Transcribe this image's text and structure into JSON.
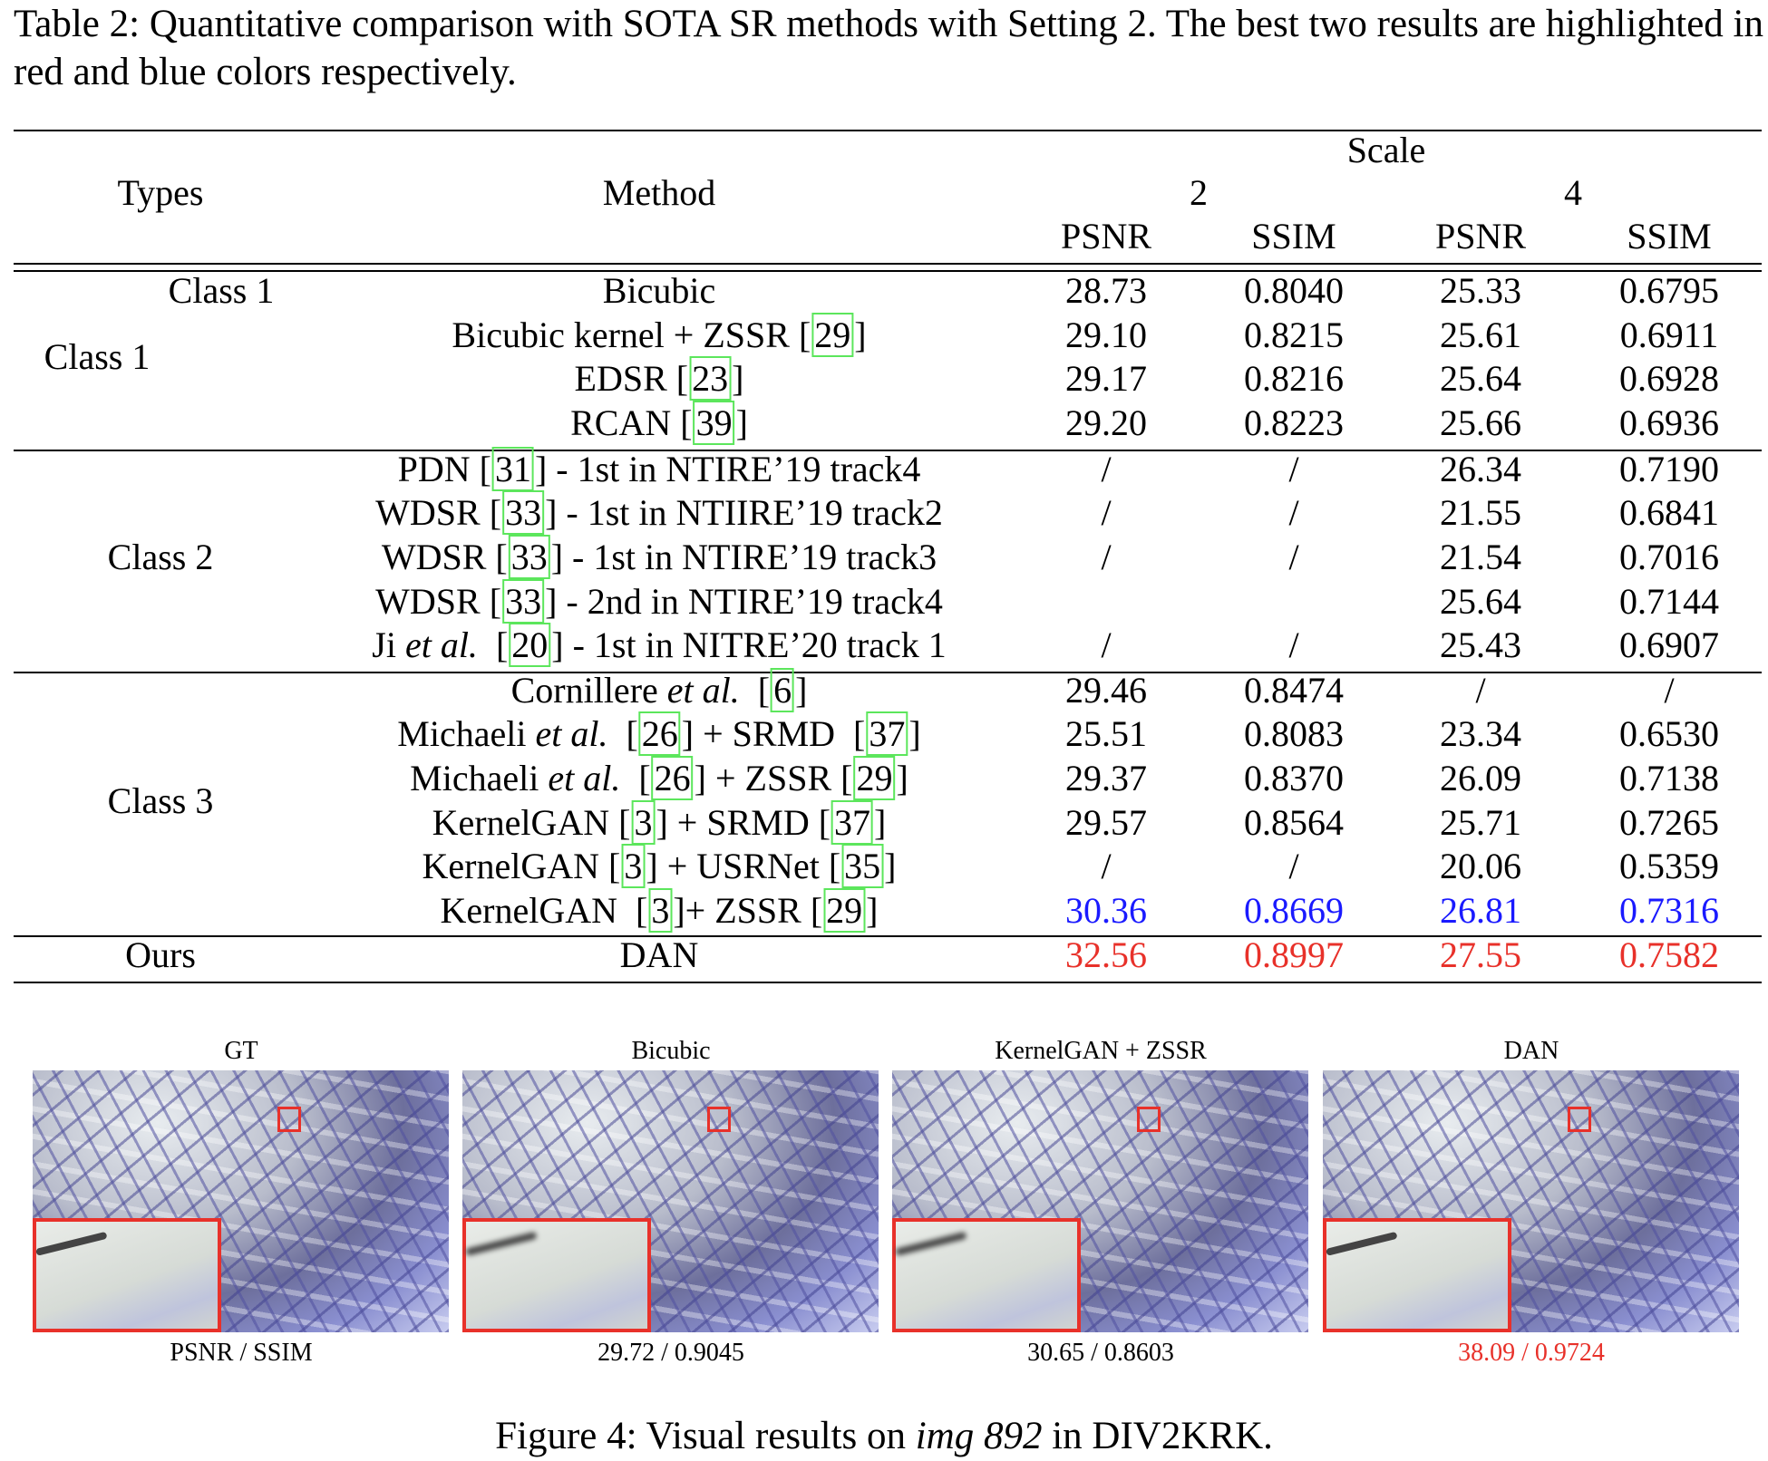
{
  "caption": "Table 2: Quantitative comparison with SOTA SR methods with Setting 2. The best two results are highlighted in red and blue colors respectively.",
  "header": {
    "types": "Types",
    "method": "Method",
    "scale": "Scale",
    "scale2": "2",
    "scale4": "4",
    "psnr": "PSNR",
    "ssim": "SSIM"
  },
  "colors": {
    "best": "#e8312a",
    "second": "#1a1aff",
    "citation_box": "#5ce65c"
  },
  "groups": [
    {
      "label": "Class 1",
      "rows": [
        {
          "type": "Class 1",
          "method": [
            {
              "t": "Bicubic"
            }
          ],
          "v": [
            "28.73",
            "0.8040",
            "25.33",
            "0.6795"
          ]
        },
        {
          "method": [
            {
              "t": "Bicubic kernel + ZSSR "
            },
            {
              "c": "29"
            }
          ],
          "v": [
            "29.10",
            "0.8215",
            "25.61",
            "0.6911"
          ]
        },
        {
          "method": [
            {
              "t": "EDSR "
            },
            {
              "c": "23"
            }
          ],
          "v": [
            "29.17",
            "0.8216",
            "25.64",
            "0.6928"
          ]
        },
        {
          "method": [
            {
              "t": "RCAN "
            },
            {
              "c": "39"
            }
          ],
          "v": [
            "29.20",
            "0.8223",
            "25.66",
            "0.6936"
          ]
        }
      ]
    },
    {
      "label": "Class 2",
      "rows": [
        {
          "method": [
            {
              "t": "PDN "
            },
            {
              "c": "31"
            },
            {
              "t": " - 1st in NTIRE’19 track4"
            }
          ],
          "v": [
            "/",
            "/",
            "26.34",
            "0.7190"
          ]
        },
        {
          "method": [
            {
              "t": "WDSR "
            },
            {
              "c": "33"
            },
            {
              "t": " - 1st in NTIIRE’19 track2"
            }
          ],
          "v": [
            "/",
            "/",
            "21.55",
            "0.6841"
          ]
        },
        {
          "method": [
            {
              "t": "WDSR "
            },
            {
              "c": "33"
            },
            {
              "t": " - 1st in NTIRE’19 track3"
            }
          ],
          "v": [
            "/",
            "/",
            "21.54",
            "0.7016"
          ]
        },
        {
          "method": [
            {
              "t": "WDSR "
            },
            {
              "c": "33"
            },
            {
              "t": " - 2nd in NTIRE’19 track4"
            }
          ],
          "v": [
            "",
            "",
            "25.64",
            "0.7144"
          ]
        },
        {
          "method": [
            {
              "t": "Ji "
            },
            {
              "i": "et al."
            },
            {
              "t": "  "
            },
            {
              "c": "20"
            },
            {
              "t": " - 1st in NITRE’20 track 1"
            }
          ],
          "v": [
            "/",
            "/",
            "25.43",
            "0.6907"
          ]
        }
      ]
    },
    {
      "label": "Class 3",
      "rows": [
        {
          "method": [
            {
              "t": "Cornillere "
            },
            {
              "i": "et al."
            },
            {
              "t": "  "
            },
            {
              "c": "6"
            }
          ],
          "v": [
            "29.46",
            "0.8474",
            "/",
            "/"
          ]
        },
        {
          "method": [
            {
              "t": "Michaeli "
            },
            {
              "i": "et al."
            },
            {
              "t": "  "
            },
            {
              "c": "26"
            },
            {
              "t": " + SRMD  "
            },
            {
              "c": "37"
            }
          ],
          "v": [
            "25.51",
            "0.8083",
            "23.34",
            "0.6530"
          ]
        },
        {
          "method": [
            {
              "t": "Michaeli "
            },
            {
              "i": "et al."
            },
            {
              "t": "  "
            },
            {
              "c": "26"
            },
            {
              "t": " + ZSSR "
            },
            {
              "c": "29"
            }
          ],
          "v": [
            "29.37",
            "0.8370",
            "26.09",
            "0.7138"
          ]
        },
        {
          "method": [
            {
              "t": "KernelGAN "
            },
            {
              "c": "3"
            },
            {
              "t": " + SRMD "
            },
            {
              "c": "37"
            }
          ],
          "v": [
            "29.57",
            "0.8564",
            "25.71",
            "0.7265"
          ]
        },
        {
          "method": [
            {
              "t": "KernelGAN "
            },
            {
              "c": "3"
            },
            {
              "t": " + USRNet "
            },
            {
              "c": "35"
            }
          ],
          "v": [
            "/",
            "/",
            "20.06",
            "0.5359"
          ]
        },
        {
          "method": [
            {
              "t": "KernelGAN  "
            },
            {
              "c": "3"
            },
            {
              "t": "+ ZSSR "
            },
            {
              "c": "29"
            }
          ],
          "v": [
            "30.36",
            "0.8669",
            "26.81",
            "0.7316"
          ],
          "hl": "second"
        }
      ]
    },
    {
      "label": "Ours",
      "rows": [
        {
          "method": [
            {
              "t": "DAN"
            }
          ],
          "v": [
            "32.56",
            "0.8997",
            "27.55",
            "0.7582"
          ],
          "hl": "best"
        }
      ]
    }
  ],
  "figure": {
    "panels": [
      {
        "label": "GT",
        "value": "PSNR / SSIM"
      },
      {
        "label": "Bicubic",
        "value": "29.72 / 0.9045"
      },
      {
        "label": "KernelGAN + ZSSR",
        "value": "30.65 / 0.8603"
      },
      {
        "label": "DAN",
        "value": "38.09 / 0.9724",
        "highlight": "best"
      }
    ],
    "caption_prefix": "Figure 4: Visual results on ",
    "caption_italic": "img 892",
    "caption_suffix": " in DIV2KRK."
  }
}
